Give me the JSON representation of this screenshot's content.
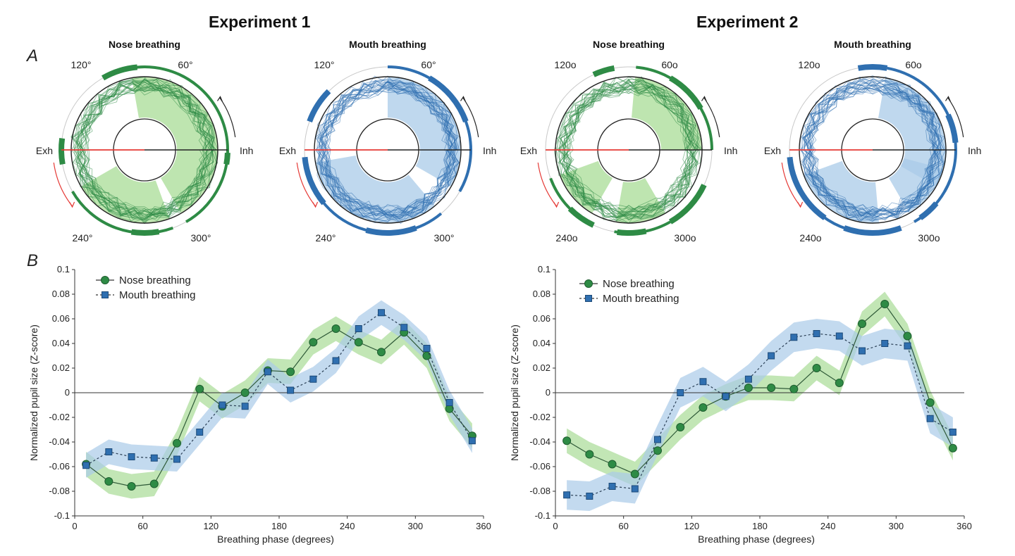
{
  "experiments": [
    {
      "title": "Experiment 1"
    },
    {
      "title": "Experiment 2"
    }
  ],
  "panel_labels": {
    "a": "A",
    "b": "B"
  },
  "colors": {
    "nose": "#2e8b45",
    "nose_fill": "#a8dc96",
    "mouth": "#2f6fb0",
    "mouth_fill": "#a9cbe8",
    "exh": "#e53935",
    "axis": "#333333"
  },
  "polar_labels": {
    "deg_120": "120°",
    "deg_60": "60°",
    "deg_240": "240°",
    "deg_300": "300°",
    "deg_120_b": "120o",
    "deg_60_b": "60o",
    "deg_240_b": "240o",
    "deg_300_b": "300o",
    "exh": "Exh",
    "inh": "Inh"
  },
  "chart_data": [
    {
      "type": "polar",
      "experiment": "Experiment 1",
      "title": "Nose breathing",
      "color": "#2e8b45",
      "fill_arcs_deg": [
        [
          300,
          360
        ],
        [
          0,
          100
        ],
        [
          210,
          290
        ]
      ],
      "thick_arcs_deg": [
        [
          350,
          358
        ],
        [
          95,
          120
        ],
        [
          261,
          280
        ],
        [
          172,
          190
        ]
      ],
      "seed": 11
    },
    {
      "type": "polar",
      "experiment": "Experiment 1",
      "title": "Mouth breathing",
      "color": "#2f6fb0",
      "fill_arcs_deg": [
        [
          330,
          360
        ],
        [
          0,
          90
        ],
        [
          190,
          310
        ]
      ],
      "thick_arcs_deg": [
        [
          20,
          60
        ],
        [
          135,
          160
        ],
        [
          185,
          220
        ],
        [
          255,
          290
        ]
      ],
      "seed": 23
    },
    {
      "type": "polar",
      "experiment": "Experiment 2",
      "title": "Nose breathing",
      "color": "#2e8b45",
      "fill_arcs_deg": [
        [
          0,
          85
        ],
        [
          200,
          240
        ],
        [
          260,
          300
        ]
      ],
      "thick_arcs_deg": [
        [
          30,
          60
        ],
        [
          100,
          115
        ],
        [
          225,
          245
        ],
        [
          262,
          282
        ],
        [
          300,
          335
        ]
      ],
      "seed": 37
    },
    {
      "type": "polar",
      "experiment": "Experiment 2",
      "title": "Mouth breathing",
      "color": "#2f6fb0",
      "fill_arcs_deg": [
        [
          300,
          360
        ],
        [
          0,
          80
        ],
        [
          200,
          275
        ],
        [
          330,
          345
        ]
      ],
      "thick_arcs_deg": [
        [
          80,
          100
        ],
        [
          5,
          25
        ],
        [
          185,
          235
        ],
        [
          250,
          290
        ],
        [
          305,
          320
        ]
      ],
      "seed": 53
    },
    {
      "type": "line",
      "experiment": "Experiment 1",
      "xlabel": "Breathing phase (degrees)",
      "ylabel": "Normalized pupil size (Z-score)",
      "xlim": [
        0,
        360
      ],
      "ylim": [
        -0.1,
        0.1
      ],
      "xticks": [
        0,
        60,
        120,
        180,
        240,
        300,
        360
      ],
      "yticks": [
        -0.1,
        -0.08,
        -0.06,
        -0.04,
        -0.02,
        0,
        0.02,
        0.04,
        0.06,
        0.08,
        0.1
      ],
      "ytick_labels": [
        "-0.1",
        "-0.08",
        "-0.06",
        "-0.04",
        "-0.02",
        "0",
        "0.02",
        "0.04",
        "0.06",
        "0.08",
        "0.1"
      ],
      "xtick_labels": [
        "0",
        "60",
        "120",
        "180",
        "240",
        "300",
        "360"
      ],
      "x": [
        10,
        30,
        50,
        70,
        90,
        110,
        130,
        150,
        170,
        190,
        210,
        230,
        250,
        270,
        290,
        310,
        330,
        350
      ],
      "series": [
        {
          "name": "Nose breathing",
          "marker": "circle",
          "linestyle": "solid",
          "values": [
            -0.058,
            -0.072,
            -0.076,
            -0.074,
            -0.041,
            0.003,
            -0.011,
            0.0,
            0.018,
            0.017,
            0.041,
            0.052,
            0.041,
            0.033,
            0.049,
            0.03,
            -0.013,
            -0.035
          ],
          "band": 0.01
        },
        {
          "name": "Mouth breathing",
          "marker": "square",
          "linestyle": "dashed",
          "values": [
            -0.059,
            -0.048,
            -0.052,
            -0.053,
            -0.054,
            -0.032,
            -0.01,
            -0.011,
            0.017,
            0.002,
            0.011,
            0.026,
            0.052,
            0.065,
            0.053,
            0.036,
            -0.008,
            -0.039
          ],
          "band": 0.01
        }
      ]
    },
    {
      "type": "line",
      "experiment": "Experiment 2",
      "xlabel": "Breathing phase (degrees)",
      "ylabel": "Normalized pupil size (Z-score)",
      "xlim": [
        0,
        360
      ],
      "ylim": [
        -0.1,
        0.1
      ],
      "xticks": [
        0,
        60,
        120,
        180,
        240,
        300,
        360
      ],
      "yticks": [
        -0.1,
        -0.08,
        -0.06,
        -0.04,
        -0.02,
        0,
        0.02,
        0.04,
        0.06,
        0.08,
        0.1
      ],
      "ytick_labels": [
        "-0.1",
        "-0.08",
        "-0.06",
        "-0.04",
        "-0.02",
        "0",
        "0.02",
        "0.04",
        "0.06",
        "0.08",
        "0.1"
      ],
      "xtick_labels": [
        "0",
        "60",
        "120",
        "180",
        "240",
        "300",
        "360"
      ],
      "x": [
        10,
        30,
        50,
        70,
        90,
        110,
        130,
        150,
        170,
        190,
        210,
        230,
        250,
        270,
        290,
        310,
        330,
        350
      ],
      "series": [
        {
          "name": "Nose breathing",
          "marker": "circle",
          "linestyle": "solid",
          "values": [
            -0.039,
            -0.05,
            -0.058,
            -0.066,
            -0.047,
            -0.028,
            -0.012,
            -0.003,
            0.004,
            0.004,
            0.003,
            0.02,
            0.008,
            0.056,
            0.072,
            0.046,
            -0.008,
            -0.045
          ],
          "band": 0.01
        },
        {
          "name": "Mouth breathing",
          "marker": "square",
          "linestyle": "dashed",
          "values": [
            -0.083,
            -0.084,
            -0.076,
            -0.078,
            -0.038,
            0.0,
            0.009,
            -0.003,
            0.011,
            0.03,
            0.045,
            0.048,
            0.046,
            0.034,
            0.04,
            0.038,
            -0.021,
            -0.032
          ],
          "band": 0.012
        }
      ]
    }
  ]
}
